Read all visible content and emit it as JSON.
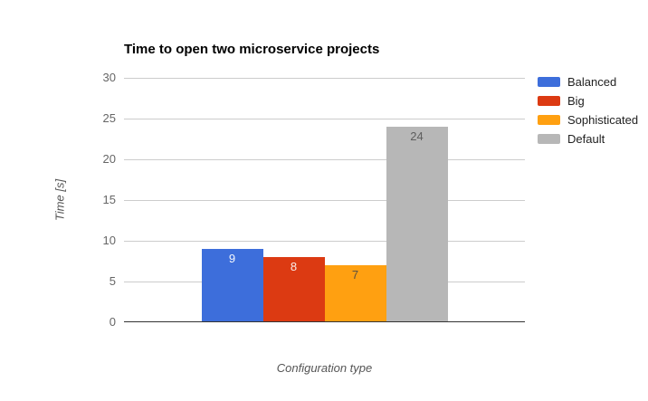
{
  "chart_data": {
    "type": "bar",
    "title": "Time to open two microservice projects",
    "xlabel": "Configuration type",
    "ylabel": "Time [s]",
    "ylim": [
      0,
      30
    ],
    "yticks": [
      0,
      5,
      10,
      15,
      20,
      25,
      30
    ],
    "grid": true,
    "legend_position": "right",
    "categories": [
      "Configuration type"
    ],
    "series": [
      {
        "name": "Balanced",
        "value": 9,
        "color": "#3d6edb",
        "value_label_color": "#f4f7fc"
      },
      {
        "name": "Big",
        "value": 8,
        "color": "#dc3a12",
        "value_label_color": "#f9ede9"
      },
      {
        "name": "Sophisticated",
        "value": 7,
        "color": "#ffa011",
        "value_label_color": "#5c5140"
      },
      {
        "name": "Default",
        "value": 24,
        "color": "#b7b7b7",
        "value_label_color": "#5e5e5e"
      }
    ]
  },
  "colors": {
    "background": "#ffffff",
    "gridline": "#cccccc",
    "baseline": "#333333",
    "tick_label": "#666666",
    "axis_title": "#555555",
    "title_text": "#000000",
    "legend_label": "#222222"
  }
}
